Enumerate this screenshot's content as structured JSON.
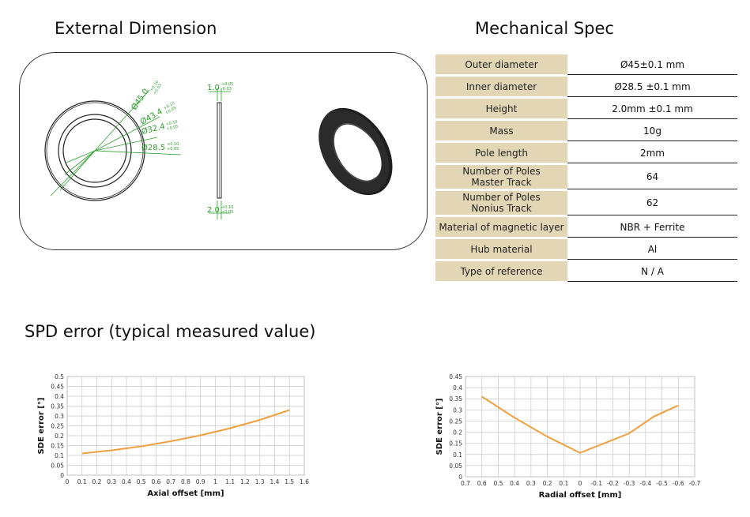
{
  "headings": {
    "external_dimension": "External Dimension",
    "mechanical_spec": "Mechanical Spec",
    "spd_error": "SPD error (typical measured value)"
  },
  "drawing": {
    "dim_450": "Ø45.0",
    "tol_450_upper": "+0.10",
    "tol_450_lower": "+0.05",
    "dim_434": "Ø43.4",
    "tol_434_upper": "+0.10",
    "tol_434_lower": "+0.05",
    "dim_324": "Ø32.4",
    "tol_324_upper": "+0.10",
    "tol_324_lower": "+0.05",
    "dim_285": "Ø28.5",
    "tol_285_upper": "+0.10",
    "tol_285_lower": "+0.05",
    "dim_10": "1.0",
    "tol_10_upper": "+0.05",
    "tol_10_lower": "-0.03",
    "dim_20": "2.0",
    "tol_20_upper": "+0.10",
    "tol_20_lower": "+0.05"
  },
  "spec": {
    "rows": [
      {
        "label": [
          "Outer diameter"
        ],
        "value": "Ø45±0.1 mm"
      },
      {
        "label": [
          "Inner diameter"
        ],
        "value": "Ø28.5 ±0.1 mm"
      },
      {
        "label": [
          "Height"
        ],
        "value": "2.0mm ±0.1 mm"
      },
      {
        "label": [
          "Mass"
        ],
        "value": "10g"
      },
      {
        "label": [
          "Pole length"
        ],
        "value": "2mm"
      },
      {
        "label": [
          "Number of Poles",
          "Master Track"
        ],
        "value": "64"
      },
      {
        "label": [
          "Number of Poles",
          "Nonius Track"
        ],
        "value": "62"
      },
      {
        "label": [
          "Material of magnetic layer"
        ],
        "value": "NBR + Ferrite"
      },
      {
        "label": [
          "Hub material"
        ],
        "value": "Al"
      },
      {
        "label": [
          "Type of reference"
        ],
        "value": "N / A"
      }
    ]
  },
  "chart_data": [
    {
      "type": "line",
      "title": "",
      "xlabel": "Axial offset [mm]",
      "ylabel": "SDE error [°]",
      "x_ticks": [
        "0",
        "0.1",
        "0.2",
        "0.3",
        "0.4",
        "0.5",
        "0.6",
        "0.7",
        "0.8",
        "0.9",
        "1",
        "1.1",
        "1.2",
        "1.3",
        "1.4",
        "1.5",
        "1.6"
      ],
      "y_ticks": [
        "0",
        "0.05",
        "0.1",
        "0.15",
        "0.2",
        "0.25",
        "0.3",
        "0.35",
        "0.4",
        "0.45",
        "0.5"
      ],
      "xlim": [
        0,
        1.6
      ],
      "ylim": [
        0,
        0.5
      ],
      "grid": true,
      "color": "#f0a040",
      "x": [
        0.1,
        0.3,
        0.5,
        0.7,
        0.9,
        1.1,
        1.3,
        1.5
      ],
      "y": [
        0.11,
        0.126,
        0.146,
        0.172,
        0.202,
        0.238,
        0.28,
        0.33
      ]
    },
    {
      "type": "line",
      "title": "",
      "xlabel": "Radial offset [mm]",
      "ylabel": "SDE error [°]",
      "x_ticks": [
        "0.7",
        "0.6",
        "0.5",
        "0.4",
        "0.3",
        "0.2",
        "0.1",
        "0",
        "-0.1",
        "-0.2",
        "-0.3",
        "-0.4",
        "-0.5",
        "-0.6",
        "-0.7"
      ],
      "y_ticks": [
        "0",
        "0.05",
        "0.1",
        "0.15",
        "0.2",
        "0.25",
        "0.3",
        "0.35",
        "0.4",
        "0.45"
      ],
      "xlim": [
        0.7,
        -0.7
      ],
      "ylim": [
        0,
        0.45
      ],
      "grid": true,
      "color": "#f0a040",
      "x": [
        0.6,
        0.4,
        0.2,
        0,
        -0.3,
        -0.45,
        -0.6
      ],
      "y": [
        0.36,
        0.265,
        0.18,
        0.107,
        0.195,
        0.27,
        0.32
      ]
    }
  ]
}
